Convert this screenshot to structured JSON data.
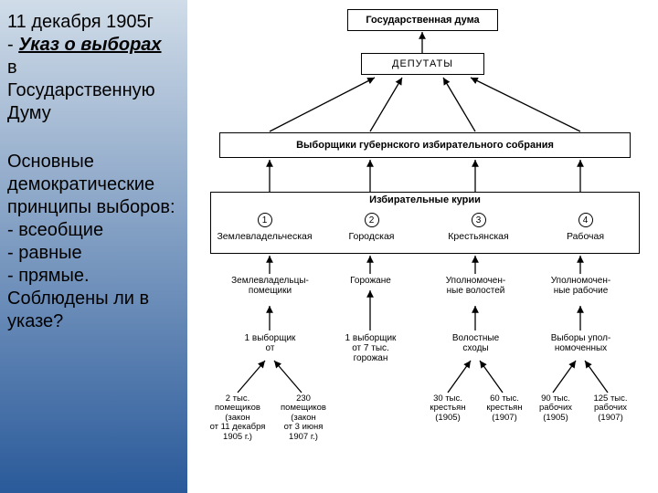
{
  "left": {
    "line1": "11 декабря 1905г",
    "dash": "- ",
    "link": "Указ о выборах",
    "line3": "в",
    "line4": "Государственную",
    "line5": "Думу",
    "p_head": "Основные демократические принципы выборов:",
    "p1": "- всеобщие",
    "p2": "- равные",
    "p3": "- прямые.",
    "p_tail": "Соблюдены ли в указе?"
  },
  "diagram": {
    "top_box": "Государственная дума",
    "deputies": "ДЕПУТАТЫ",
    "electors_box": "Выборщики губернского избирательного собрания",
    "curiae_header": "Избирательные курии",
    "curiae": [
      {
        "num": "1",
        "name": "Землевладельческая"
      },
      {
        "num": "2",
        "name": "Городская"
      },
      {
        "num": "3",
        "name": "Крестьянская"
      },
      {
        "num": "4",
        "name": "Рабочая"
      }
    ],
    "inter": [
      "Землевладельцы-\nпомещики",
      "Горожане",
      "Уполномочен-\nные волостей",
      "Уполномочен-\nные рабочие"
    ],
    "mid": [
      "1 выборщик\nот",
      "1 выборщик\nот 7 тыс.\nгорожан",
      "Волостные\nсходы",
      "Выборы упол-\nномоченных"
    ],
    "leaves": [
      "2 тыс.\nпомещиков\n(закон\nот 11 декабря\n1905 г.)",
      "230\nпомещиков\n(закон\nот 3 июня\n1907 г.)",
      "30 тыс.\nкрестьян\n(1905)",
      "60 тыс.\nкрестьян\n(1907)",
      "90 тыс.\nрабочих\n(1905)",
      "125 тыс.\nрабочих\n(1907)"
    ],
    "colors": {
      "bg": "#ffffff",
      "line": "#000000"
    }
  }
}
